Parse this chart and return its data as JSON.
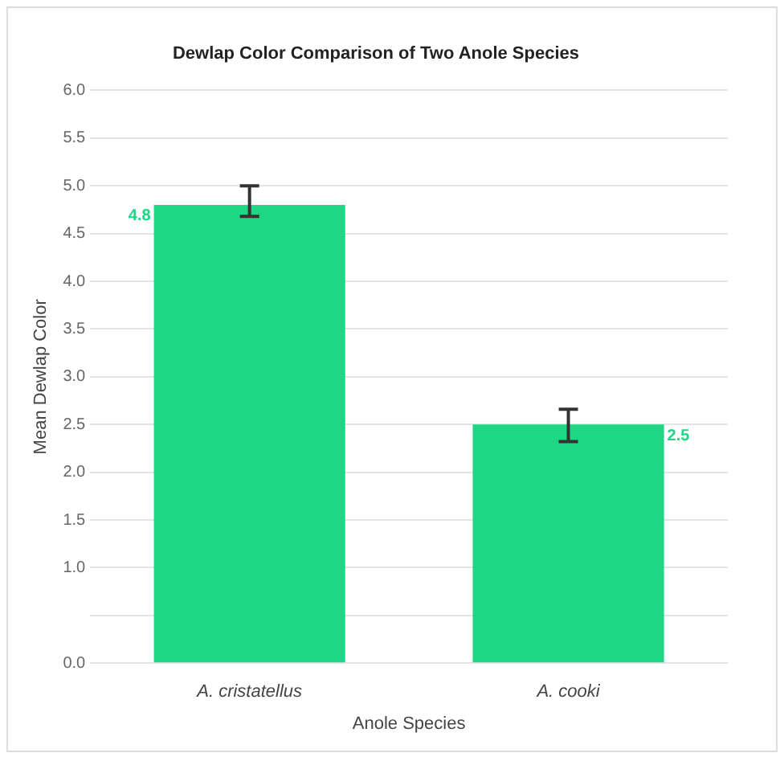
{
  "chart_data": {
    "type": "bar",
    "title": "Dewlap Color Comparison of Two Anole Species",
    "xlabel": "Anole Species",
    "ylabel": "Mean Dewlap Color",
    "categories": [
      "A. cristatellus",
      "A. cooki"
    ],
    "values": [
      4.8,
      2.5
    ],
    "errors": [
      [
        4.68,
        5.0
      ],
      [
        2.32,
        2.66
      ]
    ],
    "color": "#1ed684",
    "data_labels": true,
    "ylim": [
      0,
      6
    ],
    "yticks": [
      {
        "value": 0,
        "label": "0.0"
      },
      {
        "value": 0.5,
        "label": null
      },
      {
        "value": 1,
        "label": "1.0"
      },
      {
        "value": 1.5,
        "label": "1.5"
      },
      {
        "value": 2,
        "label": "2.0"
      },
      {
        "value": 2.5,
        "label": "2.5"
      },
      {
        "value": 3,
        "label": "3.0"
      },
      {
        "value": 3.5,
        "label": "3.5"
      },
      {
        "value": 4,
        "label": "4.0"
      },
      {
        "value": 4.5,
        "label": "4.5"
      },
      {
        "value": 5,
        "label": "5.0"
      },
      {
        "value": 5.5,
        "label": "5.5"
      },
      {
        "value": 6,
        "label": "6.0"
      }
    ],
    "grid": "y",
    "legend": false
  }
}
